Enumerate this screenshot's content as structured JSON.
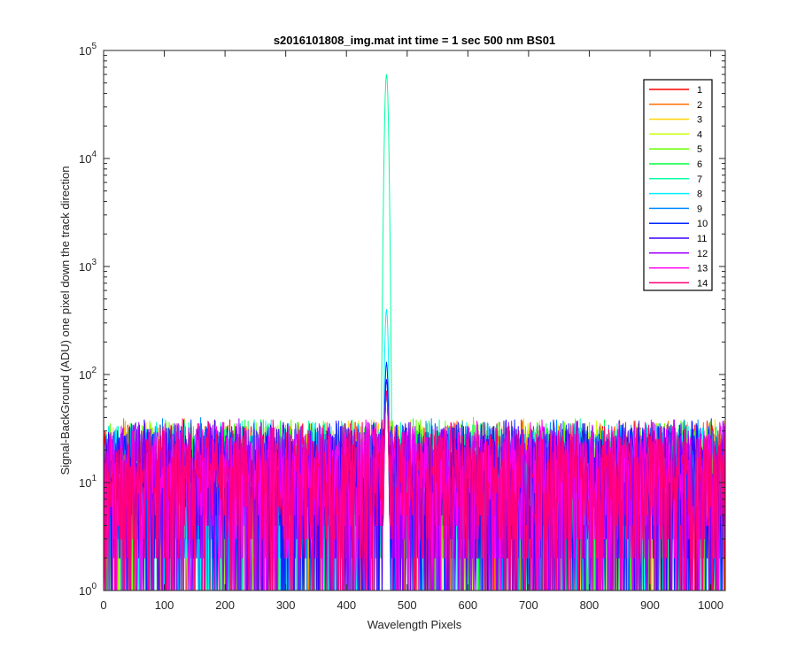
{
  "chart_data": {
    "type": "line",
    "title": "s2016101808_img.mat int time = 1 sec  500 nm BS01",
    "xlabel": "Wavelength Pixels",
    "ylabel": "Signal-BackGround (ADU) one pixel down the track direction",
    "xlim": [
      0,
      1024
    ],
    "ylim": [
      1,
      100000
    ],
    "yscale": "log",
    "x_ticks": [
      0,
      100,
      200,
      300,
      400,
      500,
      600,
      700,
      800,
      900,
      1000
    ],
    "y_ticks": [
      {
        "value": 1,
        "base": "10",
        "exp": "0"
      },
      {
        "value": 10,
        "base": "10",
        "exp": "1"
      },
      {
        "value": 100,
        "base": "10",
        "exp": "2"
      },
      {
        "value": 1000,
        "base": "10",
        "exp": "3"
      },
      {
        "value": 10000,
        "base": "10",
        "exp": "4"
      },
      {
        "value": 100000,
        "base": "10",
        "exp": "5"
      }
    ],
    "grid": false,
    "legend_position": "top-right",
    "noise_floor_approx": [
      2,
      40
    ],
    "peak": {
      "x": 466,
      "values_by_series": {
        "7": 60000,
        "8": 400,
        "10": 130,
        "11": 90
      }
    },
    "series": [
      {
        "name": "1",
        "color": "#ff0000"
      },
      {
        "name": "2",
        "color": "#ff6e00"
      },
      {
        "name": "3",
        "color": "#ffd200"
      },
      {
        "name": "4",
        "color": "#c8ff00"
      },
      {
        "name": "5",
        "color": "#64ff00"
      },
      {
        "name": "6",
        "color": "#00ff3c"
      },
      {
        "name": "7",
        "color": "#00ffa0"
      },
      {
        "name": "8",
        "color": "#00f0ff"
      },
      {
        "name": "9",
        "color": "#008cff"
      },
      {
        "name": "10",
        "color": "#0028ff"
      },
      {
        "name": "11",
        "color": "#3c00ff"
      },
      {
        "name": "12",
        "color": "#a000ff"
      },
      {
        "name": "13",
        "color": "#ff00f0"
      },
      {
        "name": "14",
        "color": "#ff0078"
      }
    ]
  }
}
